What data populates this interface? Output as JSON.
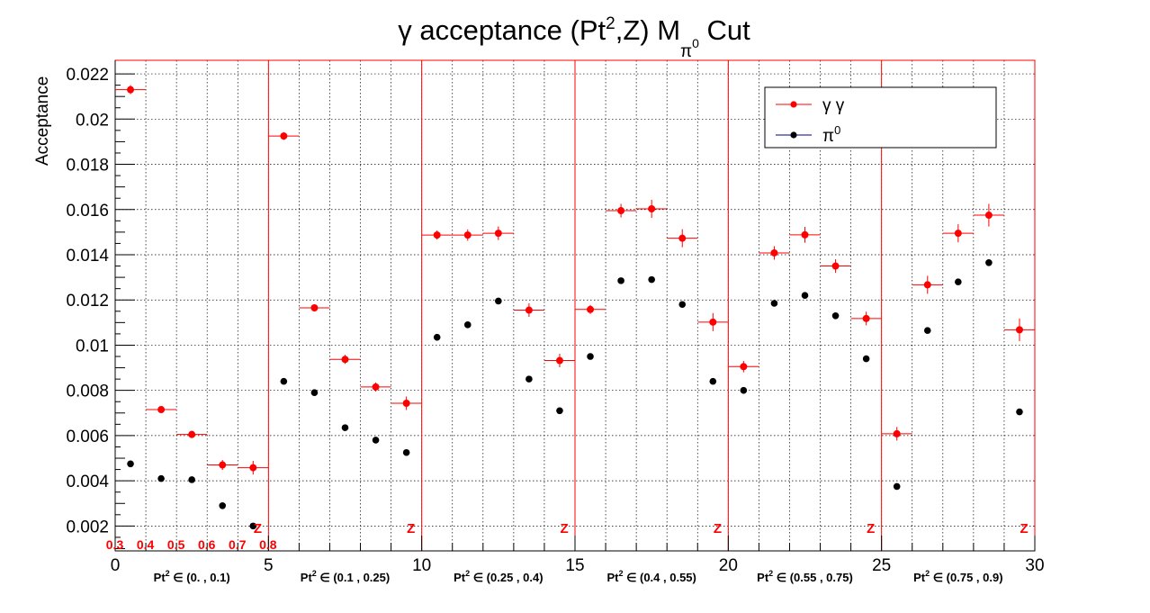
{
  "chart_data": {
    "type": "scatter",
    "title": {
      "main": "γ acceptance (Pt",
      "sup": "2",
      "mid": ",Z) M",
      "sub": "π",
      "subsup": "0",
      "end": " Cut"
    },
    "ylabel": "Acceptance",
    "xlim": [
      0,
      30
    ],
    "ylim": [
      0.0009,
      0.0226
    ],
    "grid": true,
    "x_ticks": [
      "0",
      "5",
      "10",
      "15",
      "20",
      "25",
      "30"
    ],
    "y_ticks": [
      "0.002",
      "0.004",
      "0.006",
      "0.008",
      "0.01",
      "0.012",
      "0.014",
      "0.016",
      "0.018",
      "0.02",
      "0.022"
    ],
    "legend": {
      "position": "top-right",
      "entries": [
        {
          "label": "γ γ",
          "color": "#ff0000"
        },
        {
          "label": "π",
          "sup": "0",
          "color": "#000000"
        }
      ]
    },
    "z_bin_labels": [
      "0.3",
      "0.4",
      "0.5",
      "0.6",
      "0.7",
      "0.8"
    ],
    "z_marker": "Z",
    "pt2_bins": [
      {
        "prefix": "Pt",
        "sup": "2",
        "range": " ∈ (0. , 0.1)"
      },
      {
        "prefix": "Pt",
        "sup": "2",
        "range": " ∈ (0.1 , 0.25)"
      },
      {
        "prefix": "Pt",
        "sup": "2",
        "range": " ∈ (0.25 , 0.4)"
      },
      {
        "prefix": "Pt",
        "sup": "2",
        "range": " ∈ (0.4 , 0.55)"
      },
      {
        "prefix": "Pt",
        "sup": "2",
        "range": " ∈ (0.55 , 0.75)"
      },
      {
        "prefix": "Pt",
        "sup": "2",
        "range": " ∈ (0.75 , 0.9)"
      }
    ],
    "series": [
      {
        "name": "γ γ",
        "color": "#ff0000",
        "x": [
          0.5,
          1.5,
          2.5,
          3.5,
          4.5,
          5.5,
          6.5,
          7.5,
          8.5,
          9.5,
          10.5,
          11.5,
          12.5,
          13.5,
          14.5,
          15.5,
          16.5,
          17.5,
          18.5,
          19.5,
          20.5,
          21.5,
          22.5,
          23.5,
          24.5,
          25.5,
          26.5,
          27.5,
          28.5,
          29.5
        ],
        "values": [
          0.0213,
          0.00715,
          0.00605,
          0.0047,
          0.00458,
          0.01925,
          0.01165,
          0.00937,
          0.00815,
          0.00743,
          0.01487,
          0.01487,
          0.01495,
          0.01155,
          0.00932,
          0.01158,
          0.01595,
          0.01603,
          0.01473,
          0.01102,
          0.00905,
          0.01408,
          0.01488,
          0.0135,
          0.01118,
          0.00608,
          0.01267,
          0.01495,
          0.01575,
          0.01068
        ],
        "errors": [
          0.0002,
          0.00013,
          0.00016,
          0.00022,
          0.0003,
          0.00017,
          0.00016,
          0.0002,
          0.0002,
          0.0003,
          0.0002,
          0.00025,
          0.0003,
          0.0003,
          0.0003,
          0.0002,
          0.0003,
          0.0004,
          0.0004,
          0.0004,
          0.00025,
          0.0003,
          0.00035,
          0.0003,
          0.0003,
          0.0003,
          0.0004,
          0.0004,
          0.0005,
          0.0005
        ]
      },
      {
        "name": "π0",
        "color": "#000000",
        "x": [
          0.5,
          1.5,
          2.5,
          3.5,
          4.5,
          5.5,
          6.5,
          7.5,
          8.5,
          9.5,
          10.5,
          11.5,
          12.5,
          13.5,
          14.5,
          15.5,
          16.5,
          17.5,
          18.5,
          19.5,
          20.5,
          21.5,
          22.5,
          23.5,
          24.5,
          25.5,
          26.5,
          27.5,
          28.5,
          29.5
        ],
        "values": [
          0.00475,
          0.0041,
          0.00405,
          0.0029,
          0.002,
          0.0084,
          0.0079,
          0.00635,
          0.0058,
          0.00525,
          0.01035,
          0.0109,
          0.01195,
          0.0085,
          0.0071,
          0.0095,
          0.01285,
          0.0129,
          0.0118,
          0.0084,
          0.008,
          0.01185,
          0.0122,
          0.0113,
          0.0094,
          0.00375,
          0.01065,
          0.0128,
          0.01365,
          0.00705
        ]
      }
    ]
  }
}
